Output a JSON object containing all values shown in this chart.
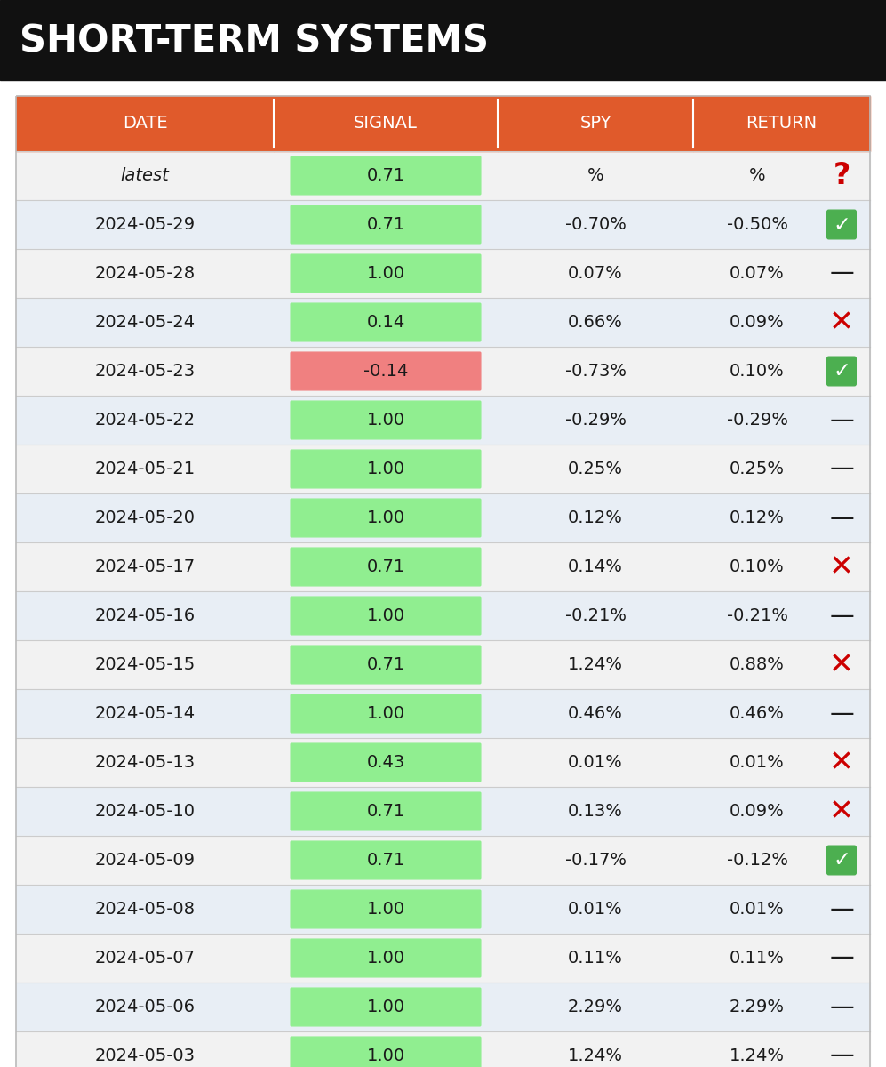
{
  "title": "SHORT-TERM SYSTEMS",
  "title_bg": "#111111",
  "title_color": "#ffffff",
  "header_bg": "#e05a2b",
  "header_color": "#ffffff",
  "headers": [
    "DATE",
    "SIGNAL",
    "SPY",
    "RETURN"
  ],
  "rows": [
    {
      "date": "latest",
      "signal": "0.71",
      "signal_bg": "#90ee90",
      "spy": "%",
      "ret": "%",
      "icon": "Q",
      "icon_color": "#cc0000",
      "icon_bg": null,
      "row_bg": "#f2f2f2"
    },
    {
      "date": "2024-05-29",
      "signal": "0.71",
      "signal_bg": "#90ee90",
      "spy": "-0.70%",
      "ret": "-0.50%",
      "icon": "C",
      "icon_color": "#ffffff",
      "icon_bg": "#4caf50",
      "row_bg": "#e8eef5"
    },
    {
      "date": "2024-05-28",
      "signal": "1.00",
      "signal_bg": "#90ee90",
      "spy": "0.07%",
      "ret": "0.07%",
      "icon": "D",
      "icon_color": "#1a1a1a",
      "icon_bg": null,
      "row_bg": "#f2f2f2"
    },
    {
      "date": "2024-05-24",
      "signal": "0.14",
      "signal_bg": "#90ee90",
      "spy": "0.66%",
      "ret": "0.09%",
      "icon": "X",
      "icon_color": "#cc0000",
      "icon_bg": null,
      "row_bg": "#e8eef5"
    },
    {
      "date": "2024-05-23",
      "signal": "-0.14",
      "signal_bg": "#f08080",
      "spy": "-0.73%",
      "ret": "0.10%",
      "icon": "C",
      "icon_color": "#ffffff",
      "icon_bg": "#4caf50",
      "row_bg": "#f2f2f2"
    },
    {
      "date": "2024-05-22",
      "signal": "1.00",
      "signal_bg": "#90ee90",
      "spy": "-0.29%",
      "ret": "-0.29%",
      "icon": "D",
      "icon_color": "#1a1a1a",
      "icon_bg": null,
      "row_bg": "#e8eef5"
    },
    {
      "date": "2024-05-21",
      "signal": "1.00",
      "signal_bg": "#90ee90",
      "spy": "0.25%",
      "ret": "0.25%",
      "icon": "D",
      "icon_color": "#1a1a1a",
      "icon_bg": null,
      "row_bg": "#f2f2f2"
    },
    {
      "date": "2024-05-20",
      "signal": "1.00",
      "signal_bg": "#90ee90",
      "spy": "0.12%",
      "ret": "0.12%",
      "icon": "D",
      "icon_color": "#1a1a1a",
      "icon_bg": null,
      "row_bg": "#e8eef5"
    },
    {
      "date": "2024-05-17",
      "signal": "0.71",
      "signal_bg": "#90ee90",
      "spy": "0.14%",
      "ret": "0.10%",
      "icon": "X",
      "icon_color": "#cc0000",
      "icon_bg": null,
      "row_bg": "#f2f2f2"
    },
    {
      "date": "2024-05-16",
      "signal": "1.00",
      "signal_bg": "#90ee90",
      "spy": "-0.21%",
      "ret": "-0.21%",
      "icon": "D",
      "icon_color": "#1a1a1a",
      "icon_bg": null,
      "row_bg": "#e8eef5"
    },
    {
      "date": "2024-05-15",
      "signal": "0.71",
      "signal_bg": "#90ee90",
      "spy": "1.24%",
      "ret": "0.88%",
      "icon": "X",
      "icon_color": "#cc0000",
      "icon_bg": null,
      "row_bg": "#f2f2f2"
    },
    {
      "date": "2024-05-14",
      "signal": "1.00",
      "signal_bg": "#90ee90",
      "spy": "0.46%",
      "ret": "0.46%",
      "icon": "D",
      "icon_color": "#1a1a1a",
      "icon_bg": null,
      "row_bg": "#e8eef5"
    },
    {
      "date": "2024-05-13",
      "signal": "0.43",
      "signal_bg": "#90ee90",
      "spy": "0.01%",
      "ret": "0.01%",
      "icon": "X",
      "icon_color": "#cc0000",
      "icon_bg": null,
      "row_bg": "#f2f2f2"
    },
    {
      "date": "2024-05-10",
      "signal": "0.71",
      "signal_bg": "#90ee90",
      "spy": "0.13%",
      "ret": "0.09%",
      "icon": "X",
      "icon_color": "#cc0000",
      "icon_bg": null,
      "row_bg": "#e8eef5"
    },
    {
      "date": "2024-05-09",
      "signal": "0.71",
      "signal_bg": "#90ee90",
      "spy": "-0.17%",
      "ret": "-0.12%",
      "icon": "C",
      "icon_color": "#ffffff",
      "icon_bg": "#4caf50",
      "row_bg": "#f2f2f2"
    },
    {
      "date": "2024-05-08",
      "signal": "1.00",
      "signal_bg": "#90ee90",
      "spy": "0.01%",
      "ret": "0.01%",
      "icon": "D",
      "icon_color": "#1a1a1a",
      "icon_bg": null,
      "row_bg": "#e8eef5"
    },
    {
      "date": "2024-05-07",
      "signal": "1.00",
      "signal_bg": "#90ee90",
      "spy": "0.11%",
      "ret": "0.11%",
      "icon": "D",
      "icon_color": "#1a1a1a",
      "icon_bg": null,
      "row_bg": "#f2f2f2"
    },
    {
      "date": "2024-05-06",
      "signal": "1.00",
      "signal_bg": "#90ee90",
      "spy": "2.29%",
      "ret": "2.29%",
      "icon": "D",
      "icon_color": "#1a1a1a",
      "icon_bg": null,
      "row_bg": "#e8eef5"
    },
    {
      "date": "2024-05-03",
      "signal": "1.00",
      "signal_bg": "#90ee90",
      "spy": "1.24%",
      "ret": "1.24%",
      "icon": "D",
      "icon_color": "#1a1a1a",
      "icon_bg": null,
      "row_bg": "#f2f2f2"
    }
  ]
}
